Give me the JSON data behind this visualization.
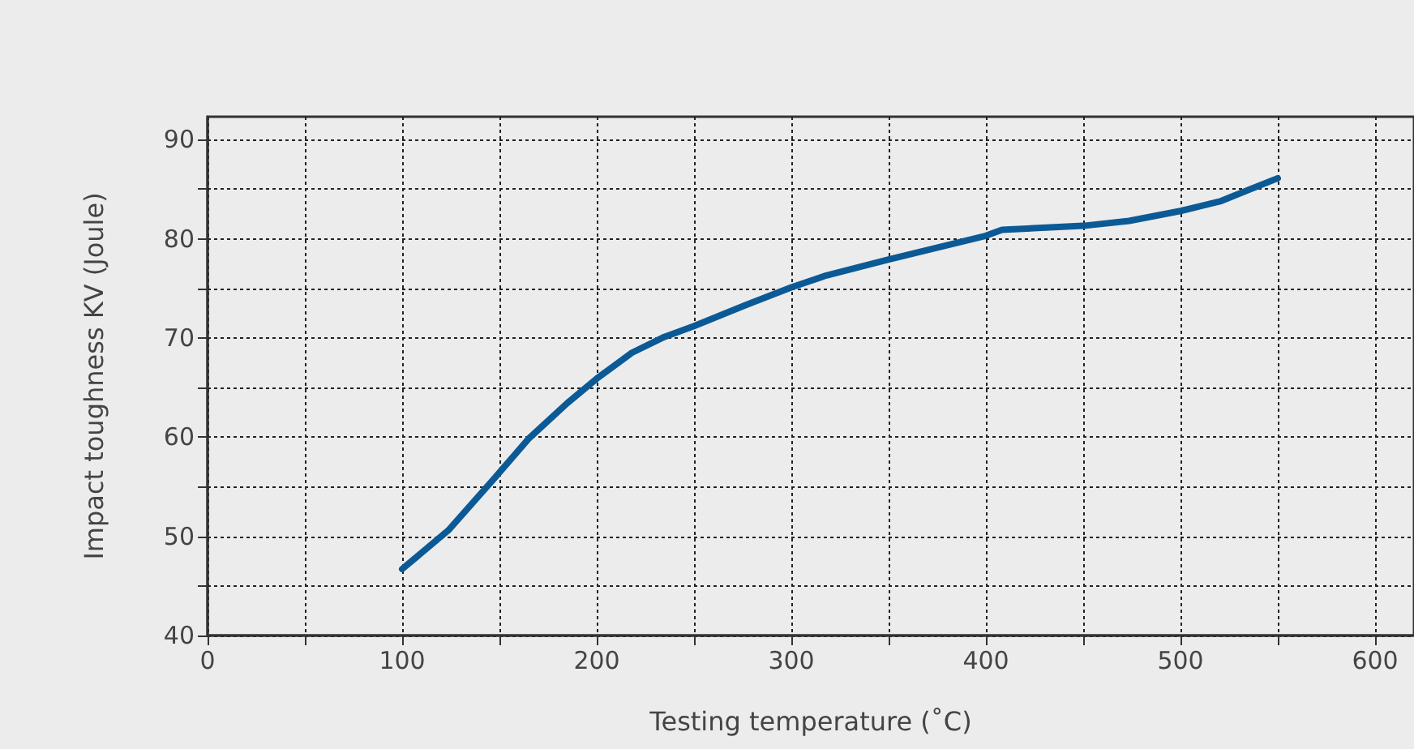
{
  "chart_data": {
    "type": "line",
    "xlabel": "Testing temperature (˚C)",
    "ylabel": "Impact toughness KV (Joule)",
    "xlim": [
      0,
      620
    ],
    "ylim": [
      40,
      92.3
    ],
    "xticks": [
      0,
      {
        "value": 50,
        "label": null
      },
      100,
      {
        "value": 150,
        "label": null
      },
      200,
      {
        "value": 250,
        "label": null
      },
      300,
      {
        "value": 350,
        "label": null
      },
      400,
      {
        "value": 450,
        "label": null
      },
      500,
      {
        "value": 550,
        "label": null
      },
      600
    ],
    "yticks": [
      40,
      {
        "value": 45,
        "label": null
      },
      50,
      {
        "value": 55,
        "label": null
      },
      60,
      {
        "value": 65,
        "label": null
      },
      70,
      {
        "value": 75,
        "label": null
      },
      80,
      {
        "value": 85,
        "label": null
      },
      90
    ],
    "grid": true,
    "marker": "none",
    "line_style": "solid",
    "series": [
      {
        "color": "#0b5a96",
        "x": [
          100,
          123.7,
          147.2,
          165.3,
          184.7,
          200,
          218,
          234.7,
          250,
          276.4,
          300,
          318,
          350,
          400,
          408.3,
          450,
          473.6,
          500,
          520.8,
          534.7,
          550
        ],
        "values": [
          46.7,
          50.6,
          55.8,
          59.9,
          63.4,
          65.9,
          68.5,
          70.1,
          71.2,
          73.3,
          75.1,
          76.3,
          77.9,
          80.3,
          80.9,
          81.3,
          81.8,
          82.8,
          83.8,
          84.9,
          86.1
        ]
      }
    ]
  }
}
